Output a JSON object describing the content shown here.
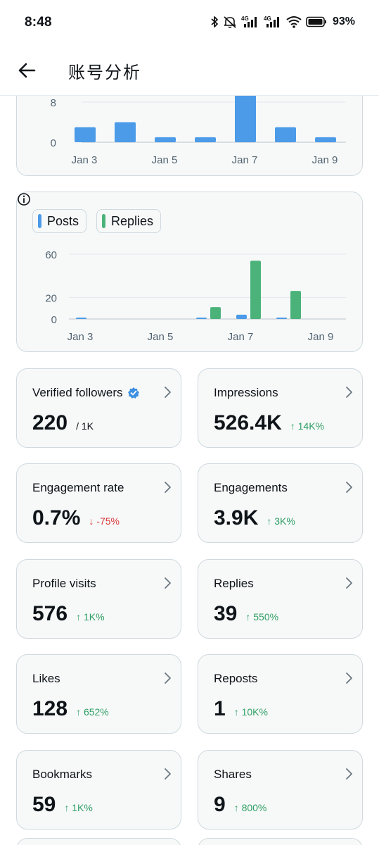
{
  "status_bar": {
    "time": "8:48",
    "battery": "93%",
    "icons": [
      "bluetooth-icon",
      "mute-icon",
      "signal-4g-icon",
      "signal-4g-icon",
      "wifi-icon",
      "battery-icon"
    ]
  },
  "header": {
    "title": "账号分析",
    "back_icon": "back-arrow-icon"
  },
  "chart_top": {
    "chart_data": {
      "type": "bar",
      "categories": [
        "Jan 3",
        "Jan 4",
        "Jan 5",
        "Jan 6",
        "Jan 7",
        "Jan 8",
        "Jan 9"
      ],
      "values": [
        3,
        4,
        1,
        1,
        9.5,
        3,
        1
      ],
      "yticks": [
        0,
        8
      ],
      "xtick_labels": [
        "Jan 3",
        "",
        "Jan 5",
        "",
        "Jan 7",
        "",
        "Jan 9"
      ],
      "color": "#4c9be8"
    }
  },
  "chart_posts_replies": {
    "legend": [
      {
        "label": "Posts",
        "color": "#4c9be8"
      },
      {
        "label": "Replies",
        "color": "#4bb37a"
      }
    ],
    "chart_data": {
      "type": "bar",
      "categories": [
        "Jan 3",
        "Jan 4",
        "Jan 5",
        "Jan 6",
        "Jan 7",
        "Jan 8",
        "Jan 9"
      ],
      "series": [
        {
          "name": "Posts",
          "values": [
            1,
            0,
            0,
            1,
            4,
            1,
            0
          ]
        },
        {
          "name": "Replies",
          "values": [
            0,
            0,
            0,
            11,
            54,
            26,
            0
          ]
        }
      ],
      "yticks": [
        0,
        20,
        60
      ],
      "ylim": [
        0,
        60
      ],
      "xtick_labels": [
        "Jan 3",
        "",
        "Jan 5",
        "",
        "Jan 7",
        "",
        "Jan 9"
      ]
    }
  },
  "stats": [
    {
      "label": "Verified followers",
      "value": "220",
      "sub": "/ 1K",
      "change": "",
      "direction": "none",
      "verified": true
    },
    {
      "label": "Impressions",
      "value": "526.4K",
      "sub": "",
      "change": "↑ 14K%",
      "direction": "up"
    },
    {
      "label": "Engagement rate",
      "value": "0.7%",
      "sub": "",
      "change": "↓ -75%",
      "direction": "down"
    },
    {
      "label": "Engagements",
      "value": "3.9K",
      "sub": "",
      "change": "↑ 3K%",
      "direction": "up"
    },
    {
      "label": "Profile visits",
      "value": "576",
      "sub": "",
      "change": "↑ 1K%",
      "direction": "up"
    },
    {
      "label": "Replies",
      "value": "39",
      "sub": "",
      "change": "↑ 550%",
      "direction": "up"
    },
    {
      "label": "Likes",
      "value": "128",
      "sub": "",
      "change": "↑ 652%",
      "direction": "up"
    },
    {
      "label": "Reposts",
      "value": "1",
      "sub": "",
      "change": "↑ 10K%",
      "direction": "up"
    },
    {
      "label": "Bookmarks",
      "value": "59",
      "sub": "",
      "change": "↑ 1K%",
      "direction": "up"
    },
    {
      "label": "Shares",
      "value": "9",
      "sub": "",
      "change": "↑ 800%",
      "direction": "up"
    }
  ]
}
